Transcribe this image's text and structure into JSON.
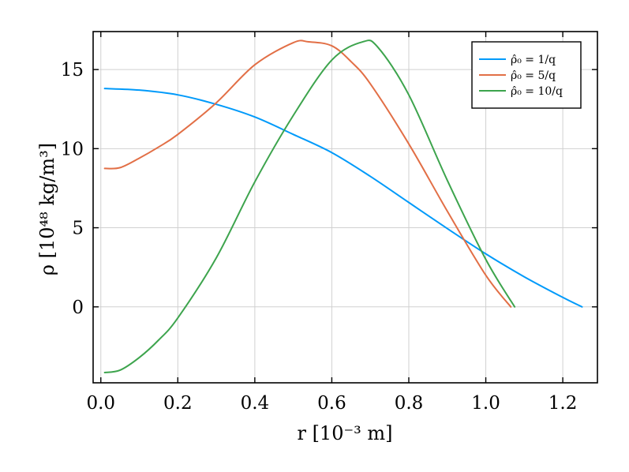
{
  "chart_data": {
    "type": "line",
    "xlabel": "r [10⁻³ m]",
    "ylabel": "ρ [10⁴⁸ kg/m³]",
    "xlim": [
      -0.02,
      1.29
    ],
    "ylim": [
      -4.8,
      17.4
    ],
    "x_ticks": [
      0.0,
      0.2,
      0.4,
      0.6,
      0.8,
      1.0,
      1.2
    ],
    "x_tick_labels": [
      "0.0",
      "0.2",
      "0.4",
      "0.6",
      "0.8",
      "1.0",
      "1.2"
    ],
    "y_ticks": [
      0,
      5,
      10,
      15
    ],
    "y_tick_labels": [
      "0",
      "5",
      "10",
      "15"
    ],
    "grid": true,
    "legend_position": "top-right",
    "series": [
      {
        "name": "ρ̂₀ = 1/q",
        "color": "#009AFA",
        "x": [
          0.01,
          0.1,
          0.2,
          0.3,
          0.4,
          0.5,
          0.6,
          0.7,
          0.8,
          0.9,
          1.0,
          1.1,
          1.2,
          1.25
        ],
        "y": [
          13.8,
          13.7,
          13.4,
          12.8,
          12.0,
          10.9,
          9.75,
          8.25,
          6.6,
          4.95,
          3.35,
          1.9,
          0.6,
          0.0
        ]
      },
      {
        "name": "ρ̂₀ = 5/q",
        "color": "#E26F46",
        "x": [
          0.01,
          0.05,
          0.1,
          0.15,
          0.2,
          0.3,
          0.4,
          0.5,
          0.54,
          0.6,
          0.65,
          0.7,
          0.8,
          0.9,
          1.0,
          1.065
        ],
        "y": [
          8.75,
          8.8,
          9.4,
          10.1,
          10.9,
          12.9,
          15.3,
          16.7,
          16.75,
          16.5,
          15.5,
          14.1,
          10.3,
          6.05,
          2.0,
          0.0
        ]
      },
      {
        "name": "ρ̂₀ = 10/q",
        "color": "#3DA44D",
        "x": [
          0.01,
          0.05,
          0.1,
          0.15,
          0.2,
          0.3,
          0.4,
          0.5,
          0.6,
          0.68,
          0.72,
          0.8,
          0.9,
          1.0,
          1.075
        ],
        "y": [
          -4.15,
          -4.0,
          -3.2,
          -2.1,
          -0.7,
          3.1,
          7.9,
          12.1,
          15.6,
          16.75,
          16.4,
          13.4,
          8.0,
          3.0,
          0.0
        ]
      }
    ]
  }
}
